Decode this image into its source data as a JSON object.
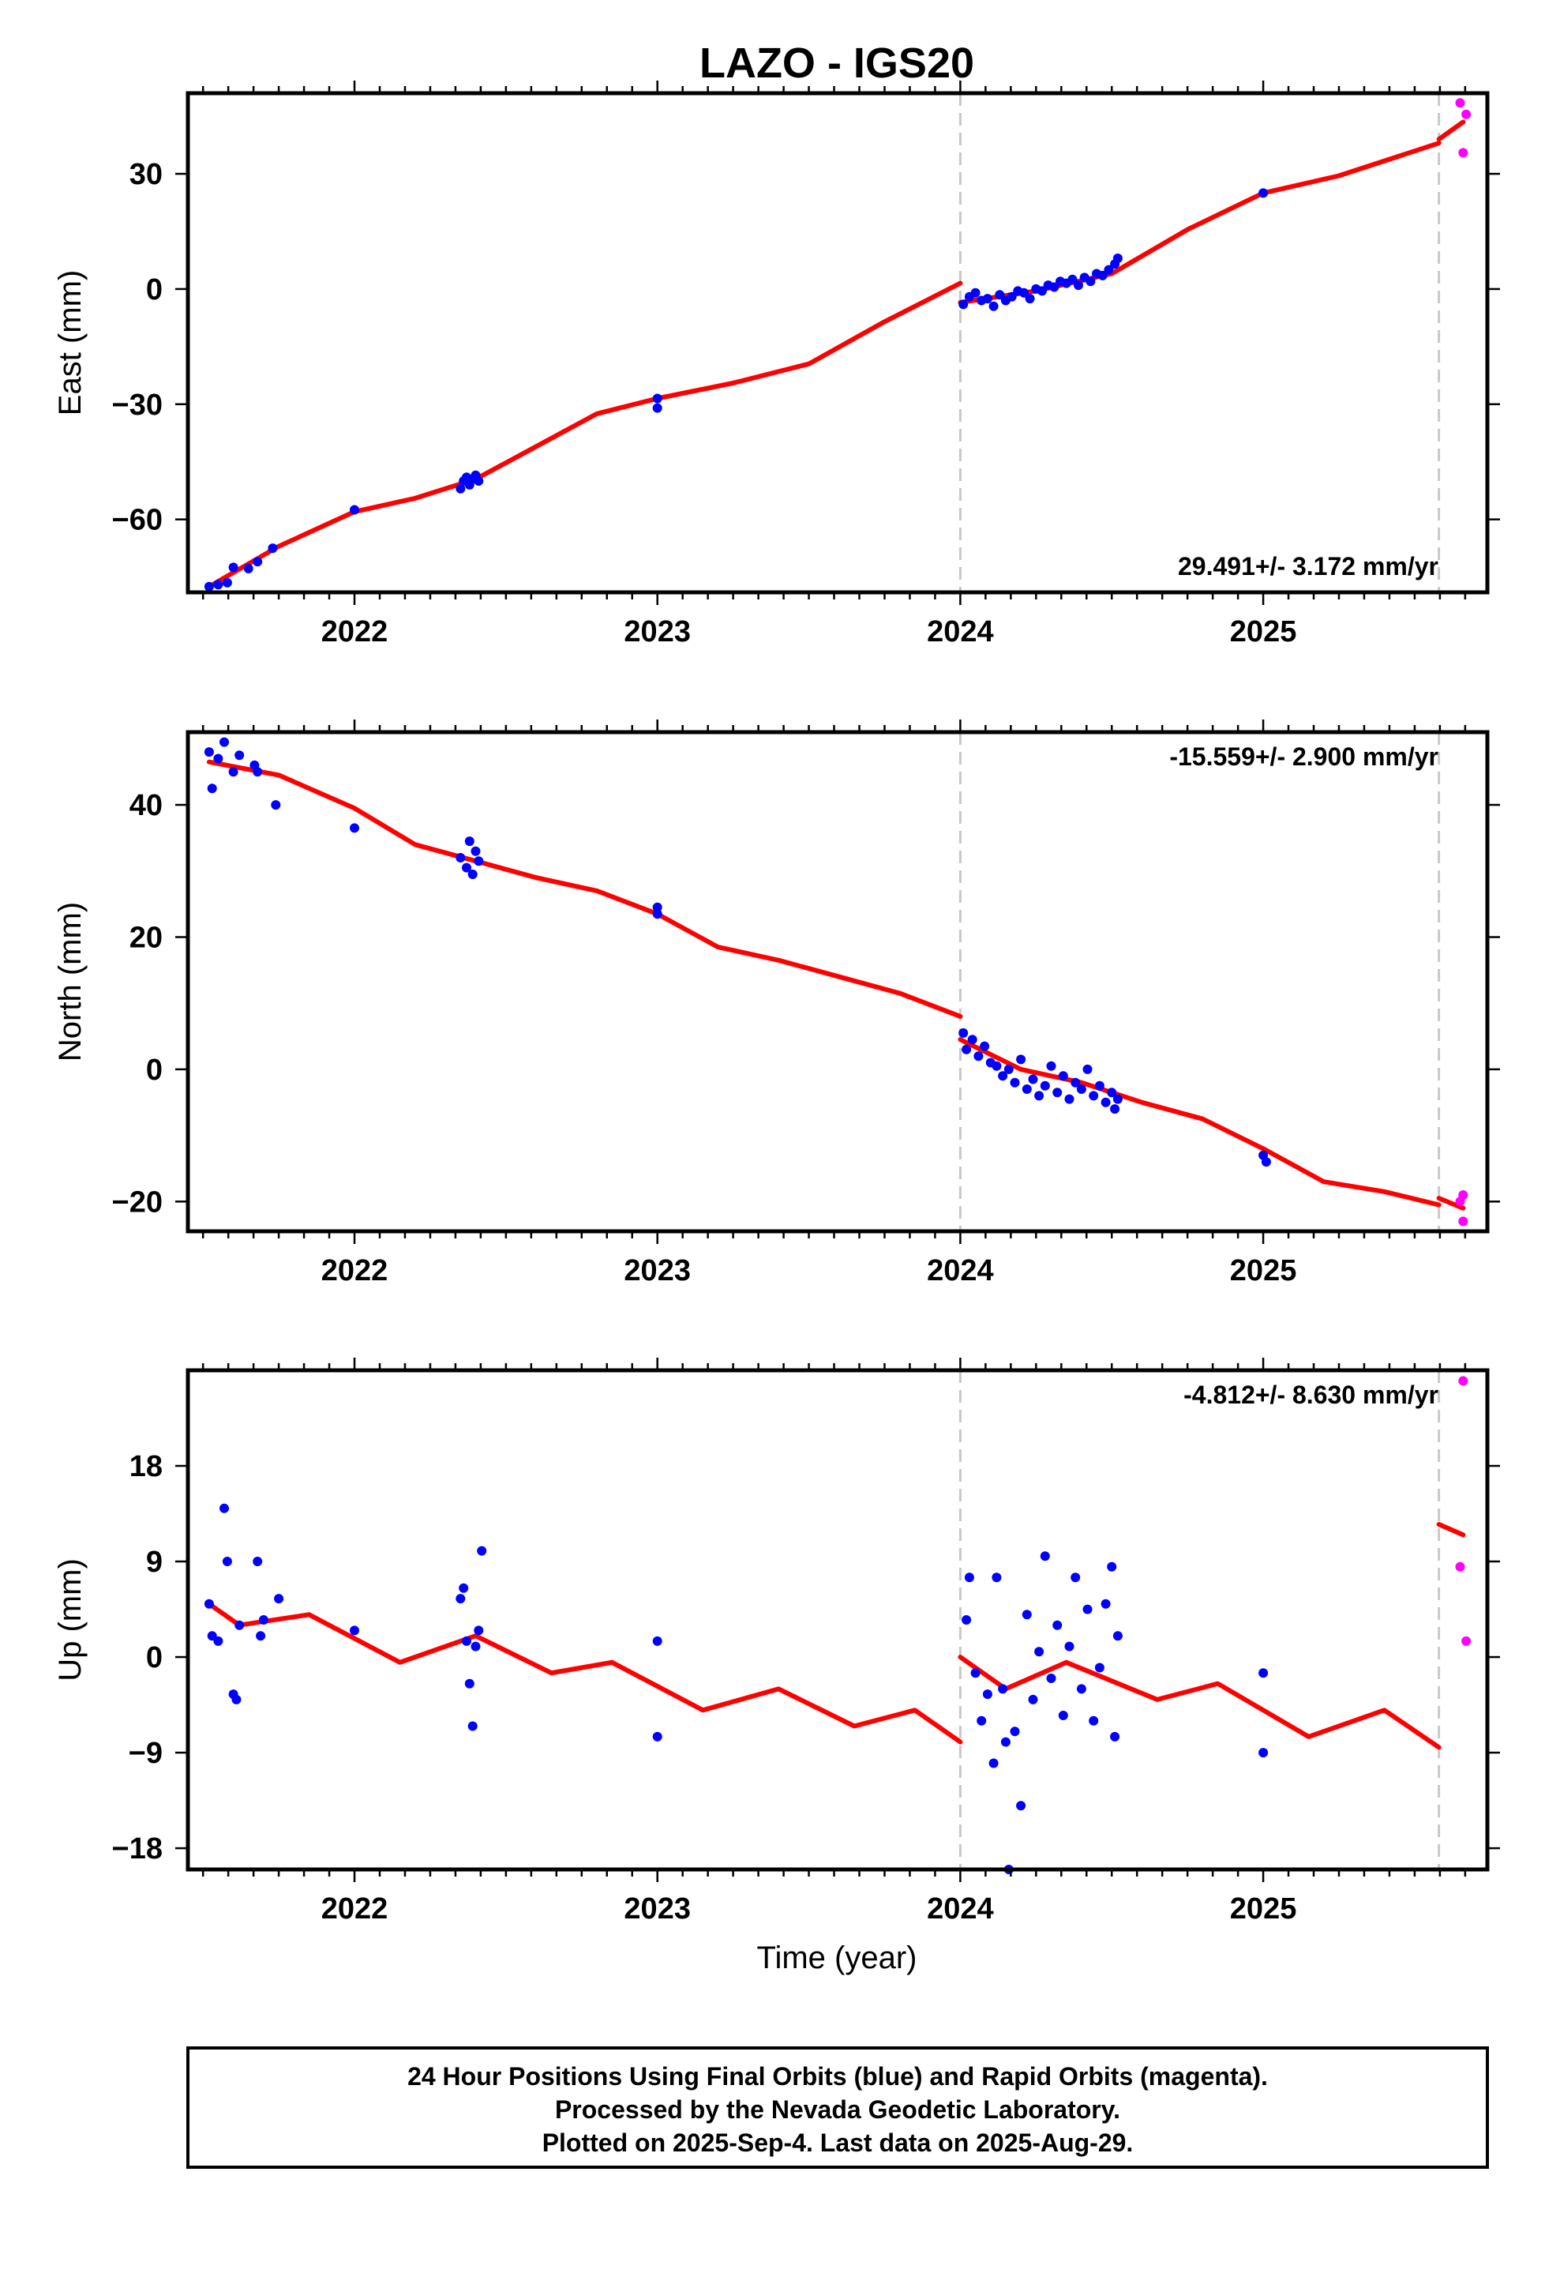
{
  "title": "LAZO - IGS20",
  "xlabel": "Time (year)",
  "x_tick_labels": [
    "2022",
    "2023",
    "2024",
    "2025"
  ],
  "footer": [
    "24 Hour Positions Using Final Orbits (blue) and Rapid Orbits (magenta).",
    "Processed by the Nevada Geodetic Laboratory.",
    "Plotted on 2025-Sep-4. Last data on 2025-Aug-29."
  ],
  "colors": {
    "final": "#0000ff",
    "rapid": "#ff00ff",
    "model": "#ff0000",
    "steps": "#c8c8c8"
  },
  "chart_data": [
    {
      "type": "scatter",
      "ylabel": "East (mm)",
      "rate_label": "29.491+/- 3.172 mm/yr",
      "xlim": [
        2021.45,
        2025.74
      ],
      "ylim": [
        -79,
        51
      ],
      "yticks": [
        -60,
        -30,
        0,
        30
      ],
      "tick_labels": [
        "−60",
        "−30",
        "0",
        "30"
      ],
      "steps": [
        2024.0,
        2025.58
      ],
      "final_points": [
        [
          2021.52,
          -77.5
        ],
        [
          2021.55,
          -77.0
        ],
        [
          2021.58,
          -76.5
        ],
        [
          2021.6,
          -72.5
        ],
        [
          2021.65,
          -72.8
        ],
        [
          2021.68,
          -71.0
        ],
        [
          2021.73,
          -67.5
        ],
        [
          2022.0,
          -57.5
        ],
        [
          2022.35,
          -52.0
        ],
        [
          2022.36,
          -50.0
        ],
        [
          2022.37,
          -49.0
        ],
        [
          2022.38,
          -51.0
        ],
        [
          2022.39,
          -49.5
        ],
        [
          2022.4,
          -48.5
        ],
        [
          2022.41,
          -50.0
        ],
        [
          2023.0,
          -28.5
        ],
        [
          2023.0,
          -31.0
        ],
        [
          2024.01,
          -4.0
        ],
        [
          2024.03,
          -2.0
        ],
        [
          2024.05,
          -1.0
        ],
        [
          2024.07,
          -3.0
        ],
        [
          2024.09,
          -2.5
        ],
        [
          2024.11,
          -4.5
        ],
        [
          2024.13,
          -1.5
        ],
        [
          2024.15,
          -3.0
        ],
        [
          2024.17,
          -2.0
        ],
        [
          2024.19,
          -0.5
        ],
        [
          2024.21,
          -1.0
        ],
        [
          2024.23,
          -2.5
        ],
        [
          2024.25,
          0.0
        ],
        [
          2024.27,
          -0.5
        ],
        [
          2024.29,
          1.0
        ],
        [
          2024.31,
          0.5
        ],
        [
          2024.33,
          2.0
        ],
        [
          2024.35,
          1.5
        ],
        [
          2024.37,
          2.5
        ],
        [
          2024.39,
          1.0
        ],
        [
          2024.41,
          3.0
        ],
        [
          2024.43,
          2.0
        ],
        [
          2024.45,
          4.0
        ],
        [
          2024.47,
          3.5
        ],
        [
          2024.49,
          5.0
        ],
        [
          2024.51,
          6.5
        ],
        [
          2024.52,
          8.0
        ],
        [
          2025.0,
          25.0
        ]
      ],
      "rapid_points": [
        [
          2025.65,
          48.5
        ],
        [
          2025.67,
          45.5
        ],
        [
          2025.66,
          35.5
        ]
      ],
      "model_segments": [
        [
          [
            2021.52,
            -77.5
          ],
          [
            2021.75,
            -67.0
          ],
          [
            2022.0,
            -58.0
          ],
          [
            2022.2,
            -54.5
          ],
          [
            2022.4,
            -49.5
          ],
          [
            2022.6,
            -41.0
          ],
          [
            2022.8,
            -32.5
          ],
          [
            2023.0,
            -28.5
          ],
          [
            2023.25,
            -24.5
          ],
          [
            2023.5,
            -19.5
          ],
          [
            2023.75,
            -8.5
          ],
          [
            2024.0,
            1.5
          ]
        ],
        [
          [
            2024.0,
            -3.5
          ],
          [
            2024.25,
            -0.5
          ],
          [
            2024.5,
            4.0
          ],
          [
            2024.75,
            15.5
          ],
          [
            2025.0,
            25.0
          ],
          [
            2025.25,
            29.5
          ],
          [
            2025.58,
            38.0
          ]
        ],
        [
          [
            2025.58,
            39.0
          ],
          [
            2025.66,
            43.5
          ]
        ]
      ]
    },
    {
      "type": "scatter",
      "ylabel": "North (mm)",
      "rate_label": "-15.559+/- 2.900 mm/yr",
      "xlim": [
        2021.45,
        2025.74
      ],
      "ylim": [
        -24.5,
        51
      ],
      "yticks": [
        -20,
        0,
        20,
        40
      ],
      "tick_labels": [
        "−20",
        "0",
        "20",
        "40"
      ],
      "steps": [
        2024.0,
        2025.58
      ],
      "final_points": [
        [
          2021.52,
          48.0
        ],
        [
          2021.53,
          42.5
        ],
        [
          2021.55,
          47.0
        ],
        [
          2021.57,
          49.5
        ],
        [
          2021.6,
          45.0
        ],
        [
          2021.62,
          47.5
        ],
        [
          2021.67,
          46.0
        ],
        [
          2021.68,
          45.0
        ],
        [
          2021.74,
          40.0
        ],
        [
          2022.0,
          36.5
        ],
        [
          2022.35,
          32.0
        ],
        [
          2022.37,
          30.5
        ],
        [
          2022.38,
          34.5
        ],
        [
          2022.39,
          29.5
        ],
        [
          2022.4,
          33.0
        ],
        [
          2022.41,
          31.5
        ],
        [
          2023.0,
          24.5
        ],
        [
          2023.0,
          23.5
        ],
        [
          2024.01,
          5.5
        ],
        [
          2024.02,
          3.0
        ],
        [
          2024.04,
          4.5
        ],
        [
          2024.06,
          2.0
        ],
        [
          2024.08,
          3.5
        ],
        [
          2024.1,
          1.0
        ],
        [
          2024.12,
          0.5
        ],
        [
          2024.14,
          -1.0
        ],
        [
          2024.16,
          0.0
        ],
        [
          2024.18,
          -2.0
        ],
        [
          2024.2,
          1.5
        ],
        [
          2024.22,
          -3.0
        ],
        [
          2024.24,
          -1.5
        ],
        [
          2024.26,
          -4.0
        ],
        [
          2024.28,
          -2.5
        ],
        [
          2024.3,
          0.5
        ],
        [
          2024.32,
          -3.5
        ],
        [
          2024.34,
          -1.0
        ],
        [
          2024.36,
          -4.5
        ],
        [
          2024.38,
          -2.0
        ],
        [
          2024.4,
          -3.0
        ],
        [
          2024.42,
          0.0
        ],
        [
          2024.44,
          -4.0
        ],
        [
          2024.46,
          -2.5
        ],
        [
          2024.48,
          -5.0
        ],
        [
          2024.5,
          -3.5
        ],
        [
          2024.51,
          -6.0
        ],
        [
          2024.52,
          -4.5
        ],
        [
          2025.0,
          -13.0
        ],
        [
          2025.01,
          -14.0
        ]
      ],
      "rapid_points": [
        [
          2025.66,
          -19.0
        ],
        [
          2025.65,
          -20.0
        ],
        [
          2025.66,
          -23.0
        ]
      ],
      "model_segments": [
        [
          [
            2021.52,
            46.5
          ],
          [
            2021.75,
            44.5
          ],
          [
            2022.0,
            39.5
          ],
          [
            2022.2,
            34.0
          ],
          [
            2022.4,
            31.5
          ],
          [
            2022.6,
            29.0
          ],
          [
            2022.8,
            27.0
          ],
          [
            2023.0,
            23.5
          ],
          [
            2023.2,
            18.5
          ],
          [
            2023.4,
            16.5
          ],
          [
            2023.6,
            14.0
          ],
          [
            2023.8,
            11.5
          ],
          [
            2024.0,
            8.0
          ]
        ],
        [
          [
            2024.0,
            4.5
          ],
          [
            2024.2,
            0.0
          ],
          [
            2024.4,
            -2.0
          ],
          [
            2024.6,
            -5.0
          ],
          [
            2024.8,
            -7.5
          ],
          [
            2025.0,
            -12.0
          ],
          [
            2025.2,
            -17.0
          ],
          [
            2025.4,
            -18.5
          ],
          [
            2025.58,
            -20.5
          ]
        ],
        [
          [
            2025.58,
            -19.5
          ],
          [
            2025.66,
            -21.0
          ]
        ]
      ]
    },
    {
      "type": "scatter",
      "ylabel": "Up (mm)",
      "rate_label": "-4.812+/- 8.630 mm/yr",
      "xlim": [
        2021.45,
        2025.74
      ],
      "ylim": [
        -20,
        27
      ],
      "yticks": [
        -18,
        -9,
        0,
        9,
        18
      ],
      "tick_labels": [
        "−18",
        "−9",
        "0",
        "9",
        "18"
      ],
      "steps": [
        2024.0,
        2025.58
      ],
      "final_points": [
        [
          2021.52,
          5.0
        ],
        [
          2021.53,
          2.0
        ],
        [
          2021.55,
          1.5
        ],
        [
          2021.57,
          14.0
        ],
        [
          2021.58,
          9.0
        ],
        [
          2021.6,
          -3.5
        ],
        [
          2021.61,
          -4.0
        ],
        [
          2021.62,
          3.0
        ],
        [
          2021.68,
          9.0
        ],
        [
          2021.69,
          2.0
        ],
        [
          2021.7,
          3.5
        ],
        [
          2021.75,
          5.5
        ],
        [
          2022.0,
          2.5
        ],
        [
          2022.35,
          5.5
        ],
        [
          2022.36,
          6.5
        ],
        [
          2022.37,
          1.5
        ],
        [
          2022.38,
          -2.5
        ],
        [
          2022.39,
          -6.5
        ],
        [
          2022.4,
          1.0
        ],
        [
          2022.41,
          2.5
        ],
        [
          2022.42,
          10.0
        ],
        [
          2023.0,
          1.5
        ],
        [
          2023.0,
          -7.5
        ],
        [
          2024.02,
          3.5
        ],
        [
          2024.03,
          7.5
        ],
        [
          2024.05,
          -1.5
        ],
        [
          2024.07,
          -6.0
        ],
        [
          2024.09,
          -3.5
        ],
        [
          2024.11,
          -10.0
        ],
        [
          2024.12,
          7.5
        ],
        [
          2024.14,
          -3.0
        ],
        [
          2024.15,
          -8.0
        ],
        [
          2024.16,
          -20.0
        ],
        [
          2024.18,
          -7.0
        ],
        [
          2024.2,
          -14.0
        ],
        [
          2024.22,
          4.0
        ],
        [
          2024.24,
          -4.0
        ],
        [
          2024.26,
          0.5
        ],
        [
          2024.28,
          9.5
        ],
        [
          2024.3,
          -2.0
        ],
        [
          2024.32,
          3.0
        ],
        [
          2024.34,
          -5.5
        ],
        [
          2024.36,
          1.0
        ],
        [
          2024.38,
          7.5
        ],
        [
          2024.4,
          -3.0
        ],
        [
          2024.42,
          4.5
        ],
        [
          2024.44,
          -6.0
        ],
        [
          2024.46,
          -1.0
        ],
        [
          2024.48,
          5.0
        ],
        [
          2024.5,
          8.5
        ],
        [
          2024.51,
          -7.5
        ],
        [
          2024.52,
          2.0
        ],
        [
          2025.0,
          -1.5
        ],
        [
          2025.0,
          -9.0
        ]
      ],
      "rapid_points": [
        [
          2025.66,
          26.0
        ],
        [
          2025.65,
          8.5
        ],
        [
          2025.67,
          1.5
        ]
      ],
      "model_segments": [
        [
          [
            2021.52,
            5.0
          ],
          [
            2021.62,
            3.0
          ],
          [
            2021.85,
            4.0
          ],
          [
            2022.15,
            -0.5
          ],
          [
            2022.4,
            2.0
          ],
          [
            2022.65,
            -1.5
          ],
          [
            2022.85,
            -0.5
          ],
          [
            2023.15,
            -5.0
          ],
          [
            2023.4,
            -3.0
          ],
          [
            2023.65,
            -6.5
          ],
          [
            2023.85,
            -5.0
          ],
          [
            2024.0,
            -8.0
          ]
        ],
        [
          [
            2024.0,
            0.0
          ],
          [
            2024.15,
            -3.0
          ],
          [
            2024.35,
            -0.5
          ],
          [
            2024.65,
            -4.0
          ],
          [
            2024.85,
            -2.5
          ],
          [
            2025.15,
            -7.5
          ],
          [
            2025.4,
            -5.0
          ],
          [
            2025.58,
            -8.5
          ]
        ],
        [
          [
            2025.58,
            12.5
          ],
          [
            2025.66,
            11.5
          ]
        ]
      ]
    }
  ]
}
